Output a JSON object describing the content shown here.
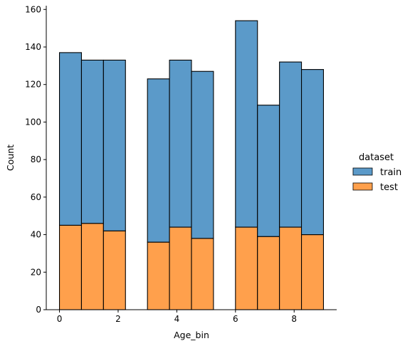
{
  "chart_data": {
    "type": "bar",
    "stacked": true,
    "xlabel": "Age_bin",
    "ylabel": "Count",
    "xlim": [
      -0.45,
      9.45
    ],
    "ylim": [
      0,
      162
    ],
    "xticks": [
      0,
      2,
      4,
      6,
      8
    ],
    "yticks": [
      0,
      20,
      40,
      60,
      80,
      100,
      120,
      140,
      160
    ],
    "bin_width": 0.75,
    "bin_edges": [
      0,
      0.75,
      1.5,
      3.0,
      3.75,
      4.5,
      6.0,
      6.75,
      7.5,
      8.25,
      9.0
    ],
    "series": [
      {
        "name": "train",
        "color": "#5b9ac9",
        "values": [
          92,
          87,
          91,
          87,
          89,
          89,
          110,
          70,
          88,
          88
        ]
      },
      {
        "name": "test",
        "color": "#ffa04c",
        "values": [
          45,
          46,
          42,
          36,
          44,
          38,
          44,
          39,
          44,
          40
        ]
      }
    ],
    "totals": [
      137,
      133,
      133,
      123,
      133,
      127,
      154,
      109,
      132,
      128
    ],
    "legend": {
      "title": "dataset",
      "placement": "right",
      "entries": [
        "train",
        "test"
      ]
    },
    "grid": false
  }
}
